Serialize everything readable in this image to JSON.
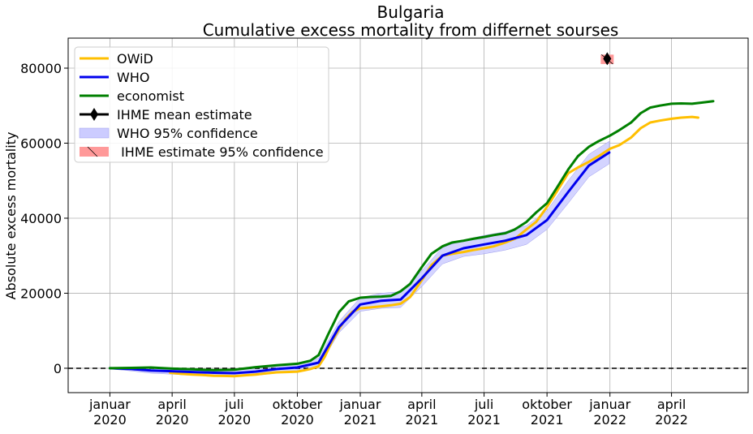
{
  "chart_data": {
    "type": "line",
    "title": "Bulgaria",
    "subtitle": "Cumulative excess mortality from differnet sourses",
    "xlabel": "",
    "ylabel": "Absolute excess mortality",
    "xlim": [
      "2019-11-01",
      "2022-07-22"
    ],
    "ylim": [
      -6500,
      88000
    ],
    "y_ticks": [
      0,
      20000,
      40000,
      60000,
      80000
    ],
    "x_ticks": [
      {
        "date": "2020-01-01",
        "line1": "januar",
        "line2": "2020"
      },
      {
        "date": "2020-04-01",
        "line1": "april",
        "line2": "2020"
      },
      {
        "date": "2020-07-01",
        "line1": "juli",
        "line2": "2020"
      },
      {
        "date": "2020-10-01",
        "line1": "oktober",
        "line2": "2020"
      },
      {
        "date": "2021-01-01",
        "line1": "januar",
        "line2": "2021"
      },
      {
        "date": "2021-04-01",
        "line1": "april",
        "line2": "2021"
      },
      {
        "date": "2021-07-01",
        "line1": "juli",
        "line2": "2021"
      },
      {
        "date": "2021-10-01",
        "line1": "oktober",
        "line2": "2021"
      },
      {
        "date": "2022-01-01",
        "line1": "januar",
        "line2": "2022"
      },
      {
        "date": "2022-04-01",
        "line1": "april",
        "line2": "2022"
      }
    ],
    "grid": true,
    "reference_line": {
      "y": 0,
      "style": "dashed",
      "color": "#000000"
    },
    "legend_position": "top-left",
    "series": [
      {
        "name": "OWiD",
        "color": "#ffbf00",
        "x": [
          "2020-03-29",
          "2020-04-15",
          "2020-05-01",
          "2020-05-15",
          "2020-06-01",
          "2020-06-15",
          "2020-07-01",
          "2020-07-15",
          "2020-08-01",
          "2020-08-15",
          "2020-09-01",
          "2020-09-15",
          "2020-10-01",
          "2020-10-10",
          "2020-10-20",
          "2020-11-01",
          "2020-11-10",
          "2020-11-20",
          "2020-12-01",
          "2020-12-10",
          "2020-12-20",
          "2021-01-01",
          "2021-01-15",
          "2021-02-01",
          "2021-02-15",
          "2021-03-01",
          "2021-03-15",
          "2021-04-01",
          "2021-04-15",
          "2021-05-01",
          "2021-05-15",
          "2021-06-01",
          "2021-06-15",
          "2021-07-01",
          "2021-07-15",
          "2021-08-01",
          "2021-08-15",
          "2021-09-01",
          "2021-09-15",
          "2021-10-01",
          "2021-10-15",
          "2021-11-01",
          "2021-11-15",
          "2021-12-01",
          "2021-12-15",
          "2022-01-01",
          "2022-01-15",
          "2022-02-01",
          "2022-02-15",
          "2022-03-01",
          "2022-03-15",
          "2022-04-01",
          "2022-04-15",
          "2022-05-01",
          "2022-05-10"
        ],
        "values": [
          -1200,
          -1500,
          -1700,
          -1800,
          -2000,
          -2050,
          -2100,
          -1900,
          -1700,
          -1400,
          -1100,
          -1000,
          -900,
          -600,
          -200,
          500,
          3000,
          7000,
          10500,
          13000,
          15000,
          16000,
          16200,
          16500,
          16800,
          17200,
          19000,
          23500,
          27500,
          30000,
          30500,
          31000,
          31500,
          32000,
          32500,
          33500,
          34500,
          37000,
          39000,
          43000,
          47000,
          52000,
          53500,
          55000,
          56500,
          58500,
          59500,
          61500,
          64000,
          65500,
          66000,
          66500,
          66800,
          67000,
          66800
        ]
      },
      {
        "name": "WHO",
        "color": "#0000ee",
        "x": [
          "2020-01-01",
          "2020-02-01",
          "2020-03-01",
          "2020-04-01",
          "2020-05-01",
          "2020-06-01",
          "2020-07-01",
          "2020-08-01",
          "2020-09-01",
          "2020-10-01",
          "2020-11-01",
          "2020-12-01",
          "2021-01-01",
          "2021-02-01",
          "2021-03-01",
          "2021-04-01",
          "2021-05-01",
          "2021-06-01",
          "2021-07-01",
          "2021-08-01",
          "2021-09-01",
          "2021-10-01",
          "2021-11-01",
          "2021-12-01",
          "2021-12-31"
        ],
        "values": [
          0,
          -200,
          -600,
          -800,
          -1000,
          -1200,
          -1300,
          -900,
          -200,
          200,
          1500,
          11000,
          17000,
          18000,
          18300,
          24000,
          30000,
          32000,
          33000,
          34000,
          35500,
          39500,
          47000,
          54000,
          57500
        ]
      },
      {
        "name": "economist",
        "color": "#008000",
        "x": [
          "2020-01-01",
          "2020-02-01",
          "2020-03-01",
          "2020-04-01",
          "2020-05-01",
          "2020-06-01",
          "2020-07-01",
          "2020-08-01",
          "2020-09-01",
          "2020-10-01",
          "2020-10-20",
          "2020-11-01",
          "2020-11-15",
          "2020-12-01",
          "2020-12-15",
          "2021-01-01",
          "2021-01-15",
          "2021-02-01",
          "2021-02-15",
          "2021-03-01",
          "2021-03-15",
          "2021-04-01",
          "2021-04-15",
          "2021-05-01",
          "2021-05-15",
          "2021-06-01",
          "2021-06-15",
          "2021-07-01",
          "2021-07-15",
          "2021-08-01",
          "2021-08-15",
          "2021-09-01",
          "2021-09-15",
          "2021-10-01",
          "2021-10-15",
          "2021-11-01",
          "2021-11-15",
          "2021-12-01",
          "2021-12-15",
          "2022-01-01",
          "2022-01-15",
          "2022-02-01",
          "2022-02-15",
          "2022-03-01",
          "2022-03-15",
          "2022-04-01",
          "2022-04-15",
          "2022-05-01",
          "2022-05-15",
          "2022-06-01"
        ],
        "values": [
          0,
          100,
          200,
          -100,
          -300,
          -500,
          -400,
          300,
          800,
          1200,
          2000,
          3500,
          9000,
          15000,
          17800,
          18800,
          19000,
          19100,
          19300,
          20500,
          22500,
          27000,
          30500,
          32500,
          33500,
          34000,
          34500,
          35000,
          35500,
          36000,
          37000,
          39000,
          41500,
          44000,
          48000,
          53000,
          56500,
          59000,
          60500,
          62000,
          63500,
          65500,
          68000,
          69500,
          70000,
          70500,
          70600,
          70500,
          70800,
          71200
        ]
      }
    ],
    "bands": [
      {
        "name": "WHO 95% confidence",
        "color": "#ccccff",
        "x": [
          "2020-01-01",
          "2020-02-01",
          "2020-03-01",
          "2020-04-01",
          "2020-05-01",
          "2020-06-01",
          "2020-07-01",
          "2020-08-01",
          "2020-09-01",
          "2020-10-01",
          "2020-11-01",
          "2020-12-01",
          "2021-01-01",
          "2021-02-01",
          "2021-03-01",
          "2021-04-01",
          "2021-05-01",
          "2021-06-01",
          "2021-07-01",
          "2021-08-01",
          "2021-09-01",
          "2021-10-01",
          "2021-11-01",
          "2021-12-01",
          "2021-12-31"
        ],
        "lower": [
          -200,
          -700,
          -1300,
          -1600,
          -1900,
          -2100,
          -2200,
          -1900,
          -1300,
          -900,
          300,
          9500,
          15200,
          16000,
          16200,
          21800,
          27800,
          29800,
          30500,
          31500,
          33000,
          37000,
          44000,
          51000,
          54500
        ],
        "upper": [
          200,
          300,
          100,
          0,
          -100,
          -300,
          -400,
          200,
          900,
          1300,
          2700,
          12500,
          18800,
          20000,
          20400,
          26000,
          32200,
          34200,
          35400,
          36400,
          38000,
          42000,
          50000,
          57000,
          60500
        ]
      }
    ],
    "points": [
      {
        "name": "IHME mean estimate",
        "color": "#000000",
        "x": "2021-12-28",
        "y": 82500,
        "ci_low": 81100,
        "ci_high": 83600,
        "ci_name": " IHME estimate 95% confidence",
        "ci_color": "#ff9999"
      }
    ],
    "legend": [
      {
        "label": "OWiD",
        "kind": "line",
        "color": "#ffbf00"
      },
      {
        "label": "WHO",
        "kind": "line",
        "color": "#0000ee"
      },
      {
        "label": "economist",
        "kind": "line",
        "color": "#008000"
      },
      {
        "label": "IHME mean estimate",
        "kind": "marker-line",
        "color": "#000000"
      },
      {
        "label": "WHO 95% confidence",
        "kind": "patch",
        "color": "#ccccff"
      },
      {
        "label": " IHME estimate 95% confidence",
        "kind": "hatch-patch",
        "color": "#ff9999"
      }
    ]
  }
}
